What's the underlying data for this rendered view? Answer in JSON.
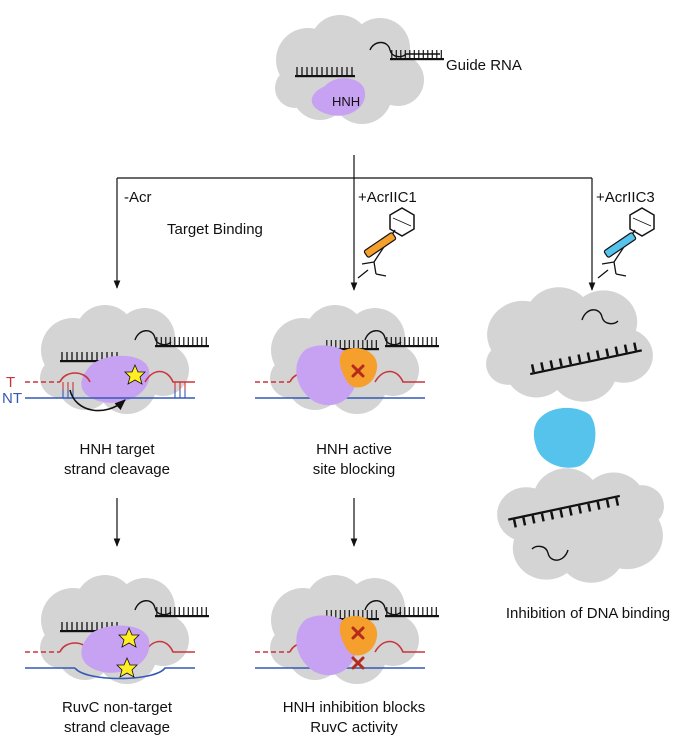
{
  "labels": {
    "guide_rna": "Guide RNA",
    "hnh": "HNH",
    "minus_acr": "-Acr",
    "acrIIC1": "+AcrIIC1",
    "acrIIC3": "+AcrIIC3",
    "target_binding": "Target Binding",
    "strand_t": "T",
    "strand_nt": "NT",
    "hnh_cleavage_line1": "HNH target",
    "hnh_cleavage_line2": "strand cleavage",
    "active_site_line1": "HNH active",
    "active_site_line2": "site blocking",
    "ruvc_line1": "RuvC non-target",
    "ruvc_line2": "strand cleavage",
    "inhibition_line1": "HNH inhibition blocks",
    "inhibition_line2": "RuvC activity",
    "dna_binding": "Inhibition of DNA binding"
  },
  "colors": {
    "protein_gray": "#d4d4d4",
    "hnh_purple": "#c7a2f2",
    "acr1_orange": "#f5a02c",
    "acr3_blue": "#55c3ec",
    "target_red": "#c8353b",
    "nontarget_blue": "#3559b5",
    "star_yellow": "#ffee22",
    "x_red": "#b52a1f"
  }
}
